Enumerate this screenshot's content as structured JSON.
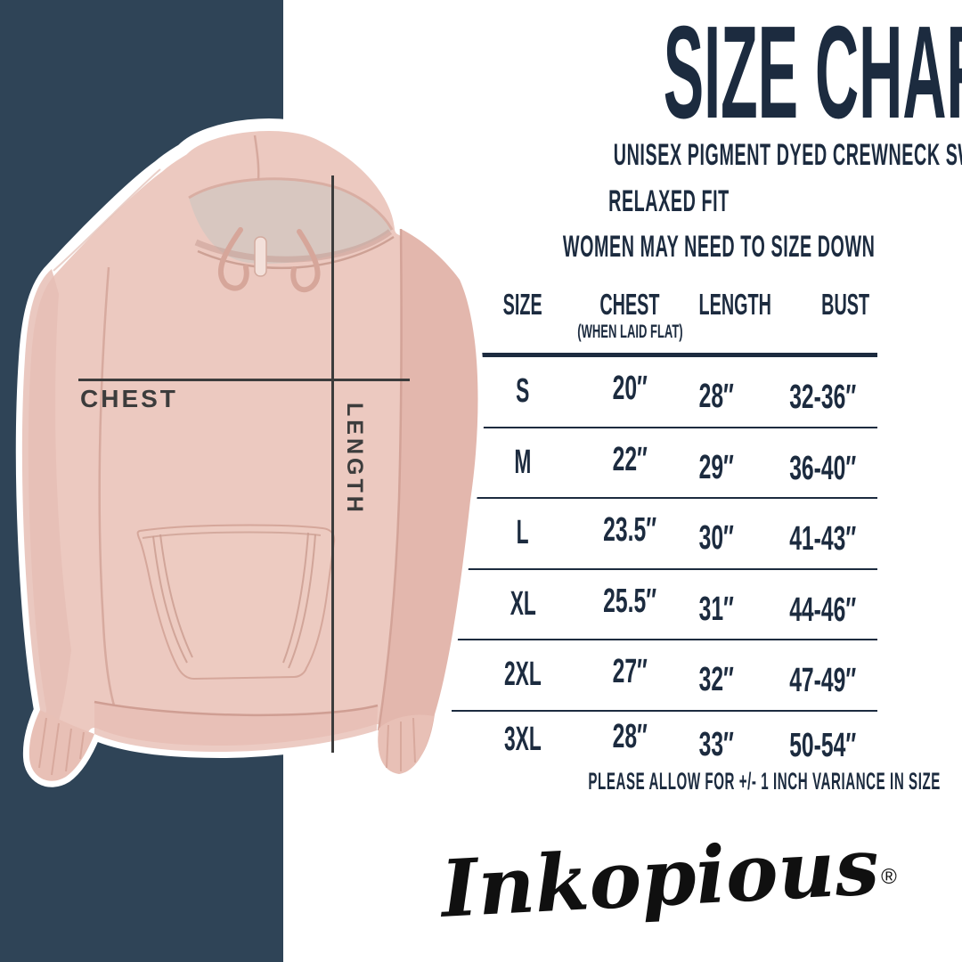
{
  "colors": {
    "band": "#2f4457",
    "navy_text": "#1c2b3f",
    "measure_gray": "#3c3c3c",
    "hoodie_pink": "#ecc9c0",
    "hoodie_shade": "#e3b7ad",
    "hoodie_lining": "#d8c7c0",
    "background": "#ffffff"
  },
  "header": {
    "title": "SIZE CHART",
    "subtitle1": "UNISEX PIGMENT DYED CREWNECK SWEATSHIRT",
    "subtitle2": "RELAXED FIT",
    "subtitle3": "WOMEN MAY NEED TO SIZE DOWN"
  },
  "product_image": {
    "description": "pink pigment-dyed hooded sweatshirt with white sticker outline",
    "chest_label": "CHEST",
    "length_label": "LENGTH"
  },
  "size_table": {
    "columns": [
      "SIZE",
      "CHEST",
      "LENGTH",
      "BUST"
    ],
    "chest_note": "(WHEN LAID FLAT)",
    "rows": [
      {
        "size": "S",
        "chest": "20″",
        "length": "28″",
        "bust": "32-36″"
      },
      {
        "size": "M",
        "chest": "22″",
        "length": "29″",
        "bust": "36-40″"
      },
      {
        "size": "L",
        "chest": "23.5″",
        "length": "30″",
        "bust": "41-43″"
      },
      {
        "size": "XL",
        "chest": "25.5″",
        "length": "31″",
        "bust": "44-46″"
      },
      {
        "size": "2XL",
        "chest": "27″",
        "length": "32″",
        "bust": "47-49″"
      },
      {
        "size": "3XL",
        "chest": "28″",
        "length": "33″",
        "bust": "50-54″"
      }
    ]
  },
  "footnote": "PLEASE ALLOW FOR +/- 1 INCH VARIANCE IN SIZE",
  "brand": {
    "logo_text": "Inkopious",
    "registered_mark": "®"
  }
}
